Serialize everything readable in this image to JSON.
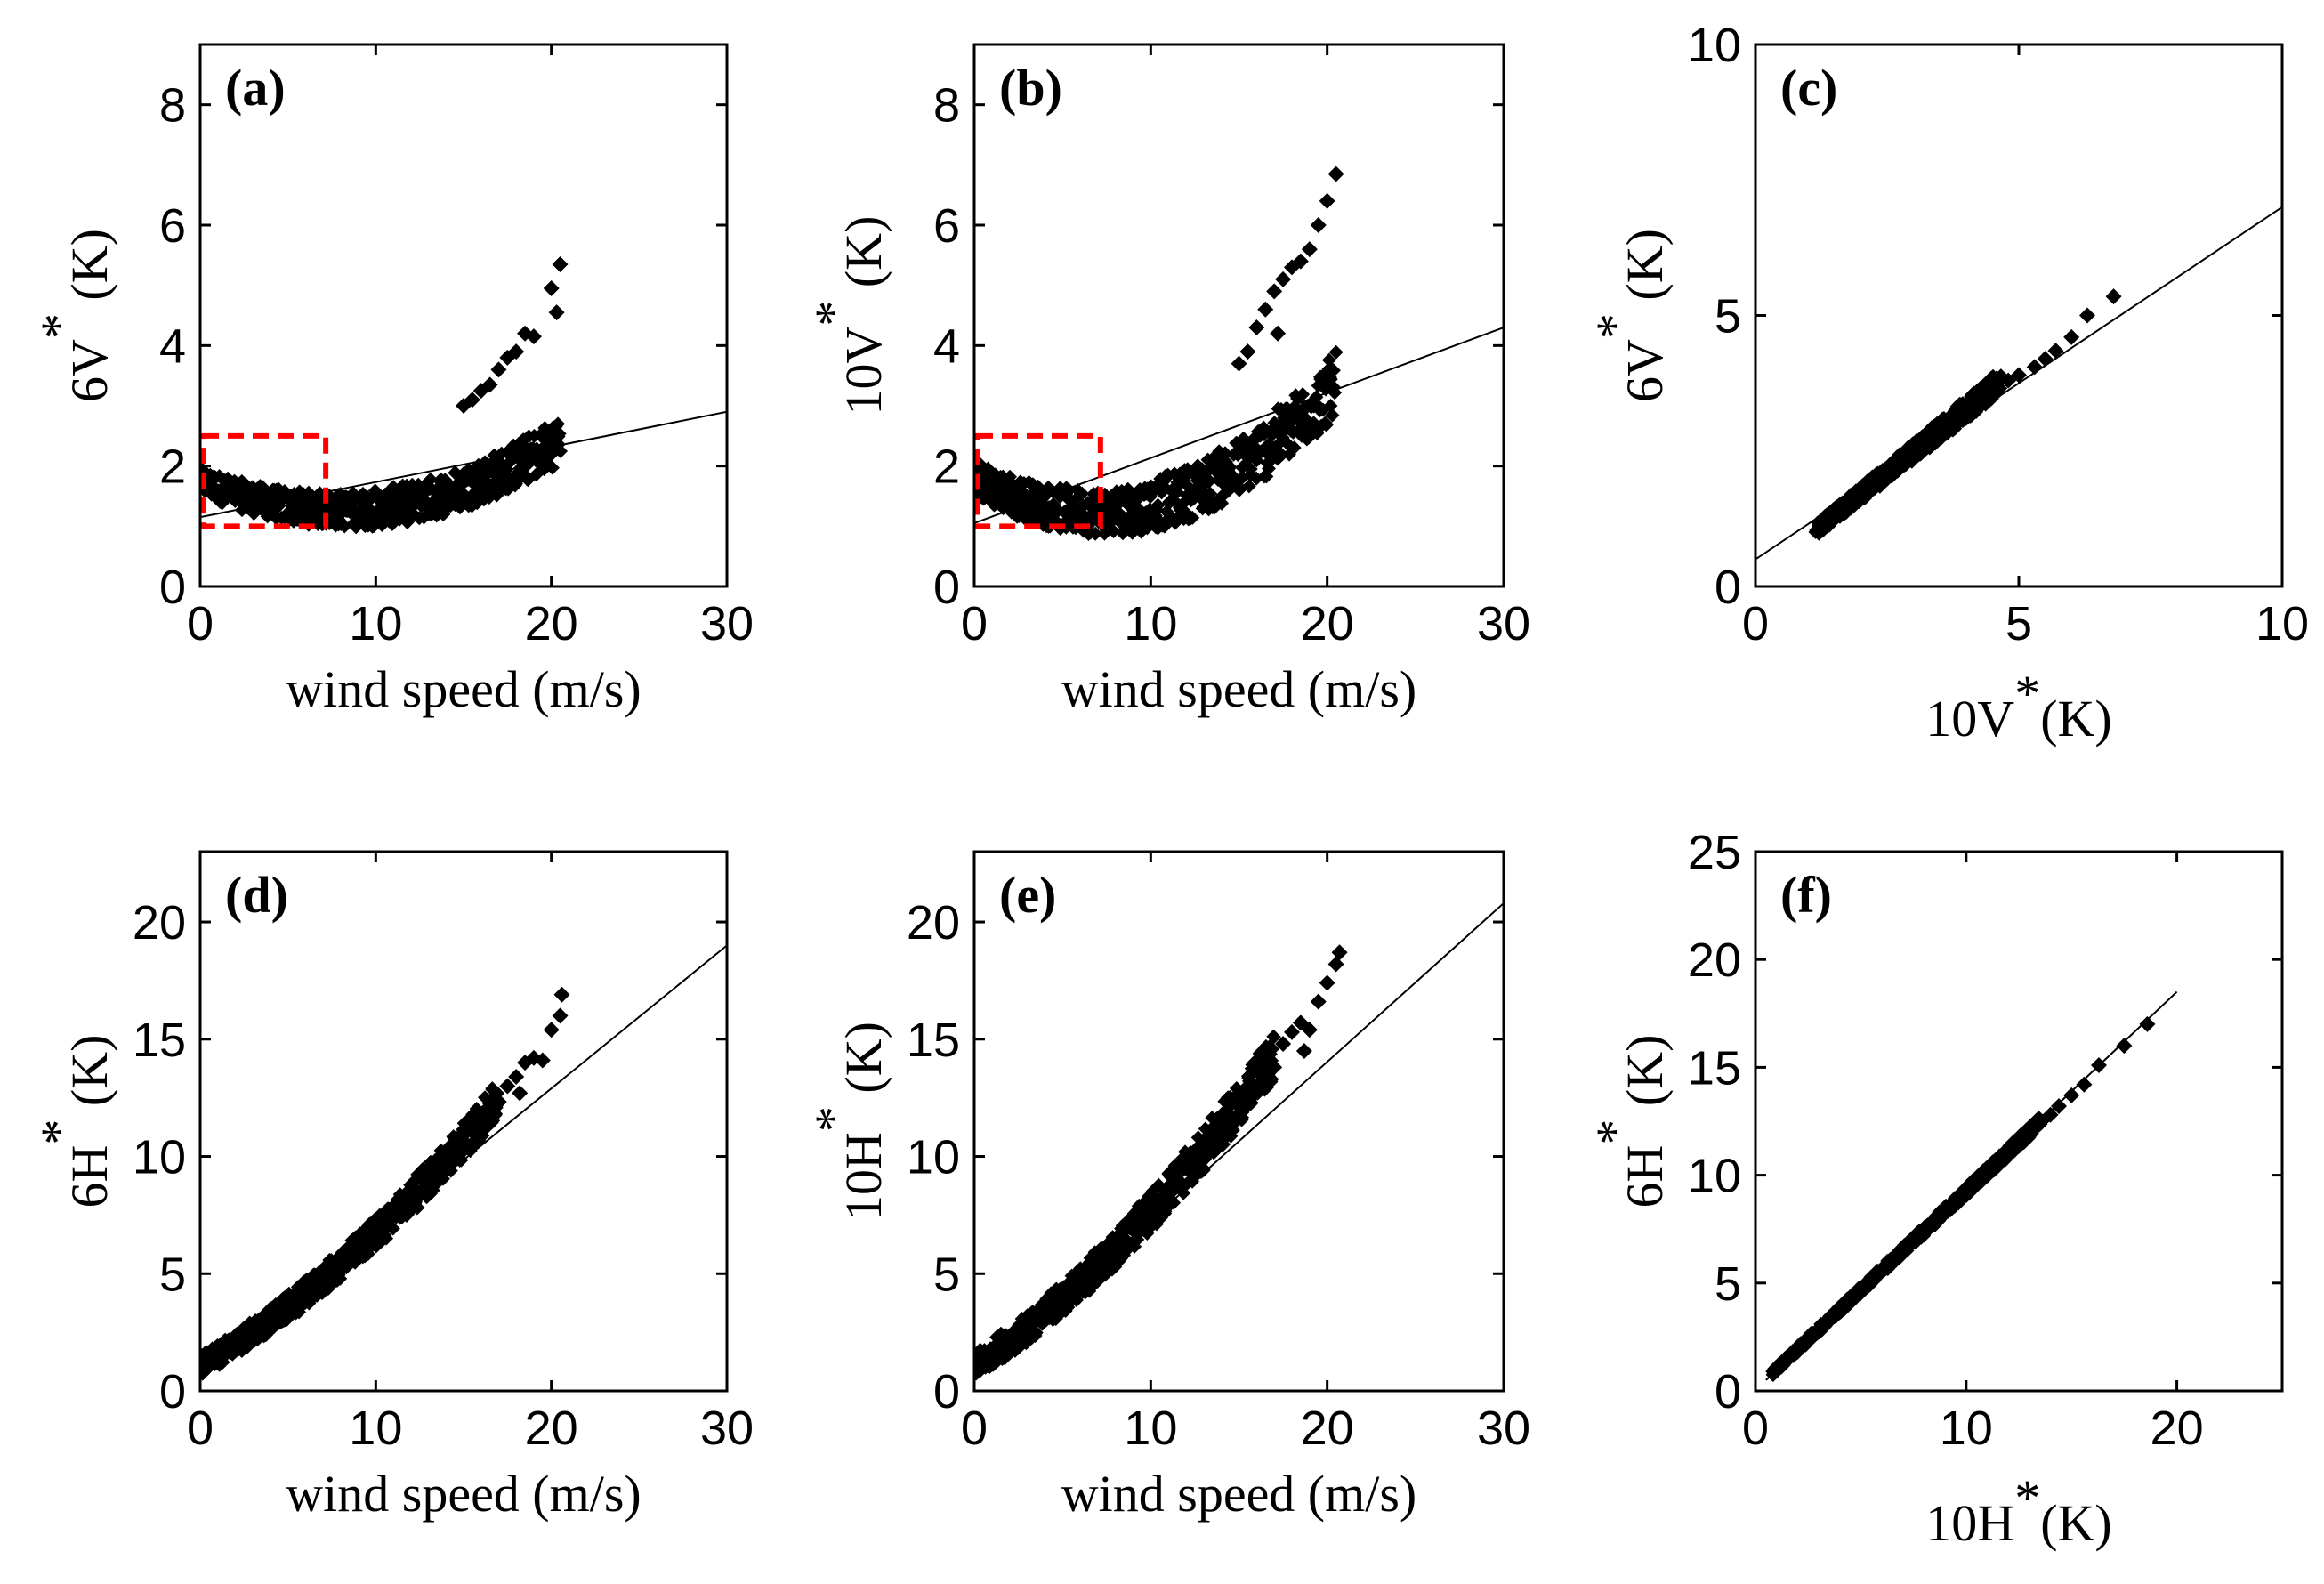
{
  "chart_data": [
    {
      "id": "a",
      "type": "scatter",
      "panel_label": "(a)",
      "xlabel": "wind speed (m/s)",
      "ylabel_main": "6V",
      "ylabel_unit": "(K)",
      "xlim": [
        0,
        30
      ],
      "ylim": [
        0,
        9
      ],
      "xticks": [
        "0",
        "10",
        "20",
        "30"
      ],
      "xtick_values": [
        0,
        10,
        20,
        30
      ],
      "yticks": [
        "0",
        "2",
        "4",
        "6",
        "8"
      ],
      "ytick_values": [
        0,
        2,
        4,
        6,
        8
      ],
      "series": [
        {
          "shape": "quad",
          "params": [
            1.75,
            -0.12,
            0.0075
          ],
          "x_range": [
            0,
            20.5
          ],
          "spread": 0.22
        }
      ],
      "outliers": [
        [
          15,
          3.0
        ],
        [
          15.5,
          3.1
        ],
        [
          16,
          3.25
        ],
        [
          16.5,
          3.35
        ],
        [
          17,
          3.6
        ],
        [
          17.5,
          3.8
        ],
        [
          18,
          3.9
        ],
        [
          18.5,
          4.2
        ],
        [
          19,
          4.15
        ],
        [
          20,
          4.95
        ],
        [
          20.5,
          5.35
        ],
        [
          20.3,
          4.55
        ]
      ],
      "fit_line": [
        [
          0,
          1.15
        ],
        [
          30,
          2.9
        ]
      ],
      "highlight_box": {
        "x": [
          0,
          7
        ],
        "y": [
          1.0,
          2.5
        ],
        "color": "#ff0000"
      }
    },
    {
      "id": "b",
      "type": "scatter",
      "panel_label": "(b)",
      "xlabel": "wind speed (m/s)",
      "ylabel_main": "10V",
      "ylabel_unit": "(K)",
      "xlim": [
        0,
        30
      ],
      "ylim": [
        0,
        9
      ],
      "xticks": [
        "0",
        "10",
        "20",
        "30"
      ],
      "xtick_values": [
        0,
        10,
        20,
        30
      ],
      "yticks": [
        "0",
        "2",
        "4",
        "6",
        "8"
      ],
      "ytick_values": [
        0,
        2,
        4,
        6,
        8
      ],
      "series": [
        {
          "shape": "quad",
          "params": [
            1.8,
            -0.16,
            0.0115
          ],
          "x_range": [
            0,
            20.5
          ],
          "spread": 0.3
        }
      ],
      "outliers": [
        [
          15,
          3.7
        ],
        [
          15.5,
          3.9
        ],
        [
          16,
          4.3
        ],
        [
          16.5,
          4.6
        ],
        [
          17,
          4.9
        ],
        [
          17.5,
          5.1
        ],
        [
          18,
          5.3
        ],
        [
          18.5,
          5.4
        ],
        [
          19,
          5.6
        ],
        [
          19.5,
          6.0
        ],
        [
          20,
          6.4
        ],
        [
          20.5,
          6.85
        ],
        [
          17.2,
          4.2
        ]
      ],
      "fit_line": [
        [
          0,
          1.05
        ],
        [
          30,
          4.3
        ]
      ],
      "highlight_box": {
        "x": [
          0,
          7
        ],
        "y": [
          1.0,
          2.5
        ],
        "color": "#ff0000"
      }
    },
    {
      "id": "c",
      "type": "scatter",
      "panel_label": "(c)",
      "xlabel_main": "10V",
      "xlabel_unit": "(K)",
      "ylabel_main": "6V",
      "ylabel_unit": "(K)",
      "xlim": [
        0,
        10
      ],
      "ylim": [
        0,
        10
      ],
      "xticks": [
        "0",
        "5",
        "10"
      ],
      "xtick_values": [
        0,
        5,
        10
      ],
      "yticks": [
        "0",
        "5",
        "10"
      ],
      "ytick_values": [
        0,
        5,
        10
      ],
      "series": [
        {
          "shape": "linear",
          "params": [
            0.15,
            0.78
          ],
          "x_range": [
            1.2,
            4.6
          ],
          "spread": 0.12
        }
      ],
      "outliers": [
        [
          4.8,
          3.8
        ],
        [
          5.0,
          3.9
        ],
        [
          5.3,
          4.05
        ],
        [
          5.5,
          4.2
        ],
        [
          5.7,
          4.35
        ],
        [
          6.0,
          4.6
        ],
        [
          6.3,
          5.0
        ],
        [
          6.8,
          5.35
        ]
      ],
      "fit_line": [
        [
          0,
          0.5
        ],
        [
          10,
          7.0
        ]
      ]
    },
    {
      "id": "d",
      "type": "scatter",
      "panel_label": "(d)",
      "xlabel": "wind speed (m/s)",
      "ylabel_main": "6H",
      "ylabel_unit": "(K)",
      "xlim": [
        0,
        30
      ],
      "ylim": [
        0,
        23
      ],
      "xticks": [
        "0",
        "10",
        "20",
        "30"
      ],
      "xtick_values": [
        0,
        10,
        20,
        30
      ],
      "yticks": [
        "0",
        "5",
        "10",
        "15",
        "20"
      ],
      "ytick_values": [
        0,
        5,
        10,
        15,
        20
      ],
      "series": [
        {
          "shape": "quad",
          "params": [
            1.1,
            0.42,
            0.0145
          ],
          "x_range": [
            0,
            17
          ],
          "spread": 0.45
        }
      ],
      "outliers": [
        [
          15.5,
          11.2
        ],
        [
          16,
          11.8
        ],
        [
          16.5,
          12.1
        ],
        [
          17,
          12.3
        ],
        [
          17.5,
          13.0
        ],
        [
          18,
          13.4
        ],
        [
          18.5,
          14.0
        ],
        [
          19,
          14.2
        ],
        [
          19.5,
          14.1
        ],
        [
          20,
          15.4
        ],
        [
          20.5,
          16.0
        ],
        [
          20.6,
          16.9
        ],
        [
          18.2,
          12.7
        ]
      ],
      "fit_line": [
        [
          0,
          0.7
        ],
        [
          30,
          19.0
        ]
      ]
    },
    {
      "id": "e",
      "type": "scatter",
      "panel_label": "(e)",
      "xlabel": "wind speed (m/s)",
      "ylabel_main": "10H",
      "ylabel_unit": "(K)",
      "xlim": [
        0,
        30
      ],
      "ylim": [
        0,
        23
      ],
      "xticks": [
        "0",
        "10",
        "20",
        "30"
      ],
      "xtick_values": [
        0,
        10,
        20,
        30
      ],
      "yticks": [
        "0",
        "5",
        "10",
        "15",
        "20"
      ],
      "ytick_values": [
        0,
        5,
        10,
        15,
        20
      ],
      "series": [
        {
          "shape": "quad",
          "params": [
            1.1,
            0.48,
            0.0175
          ],
          "x_range": [
            0,
            17
          ],
          "spread": 0.55
        }
      ],
      "outliers": [
        [
          15.5,
          12.7
        ],
        [
          16,
          13.0
        ],
        [
          16.5,
          13.2
        ],
        [
          17,
          13.8
        ],
        [
          17.5,
          14.8
        ],
        [
          18,
          15.3
        ],
        [
          18.5,
          15.7
        ],
        [
          19,
          15.4
        ],
        [
          19.5,
          16.6
        ],
        [
          20,
          17.4
        ],
        [
          20.5,
          18.2
        ],
        [
          20.7,
          18.7
        ],
        [
          18.7,
          14.5
        ]
      ],
      "fit_line": [
        [
          0,
          0.5
        ],
        [
          30,
          20.8
        ]
      ]
    },
    {
      "id": "f",
      "type": "scatter",
      "panel_label": "(f)",
      "xlabel_main": "10H",
      "xlabel_unit": "(K)",
      "ylabel_main": "6H",
      "ylabel_unit": "(K)",
      "xlim": [
        0,
        25
      ],
      "ylim": [
        0,
        25
      ],
      "xticks": [
        "0",
        "10",
        "20"
      ],
      "xtick_values": [
        0,
        10,
        20
      ],
      "yticks": [
        "0",
        "5",
        "10",
        "15",
        "20",
        "25"
      ],
      "ytick_values": [
        0,
        5,
        10,
        15,
        20,
        25
      ],
      "series": [
        {
          "shape": "linear",
          "params": [
            0.1,
            0.915
          ],
          "x_range": [
            0.8,
            13.6
          ],
          "spread": 0.15
        }
      ],
      "outliers": [
        [
          14,
          12.8
        ],
        [
          14.4,
          13.2
        ],
        [
          15,
          13.7
        ],
        [
          15.6,
          14.2
        ],
        [
          16.3,
          15.1
        ],
        [
          17.5,
          16.0
        ],
        [
          18.6,
          17.0
        ]
      ],
      "fit_line": [
        [
          0.5,
          0.5
        ],
        [
          20,
          18.5
        ]
      ]
    }
  ]
}
